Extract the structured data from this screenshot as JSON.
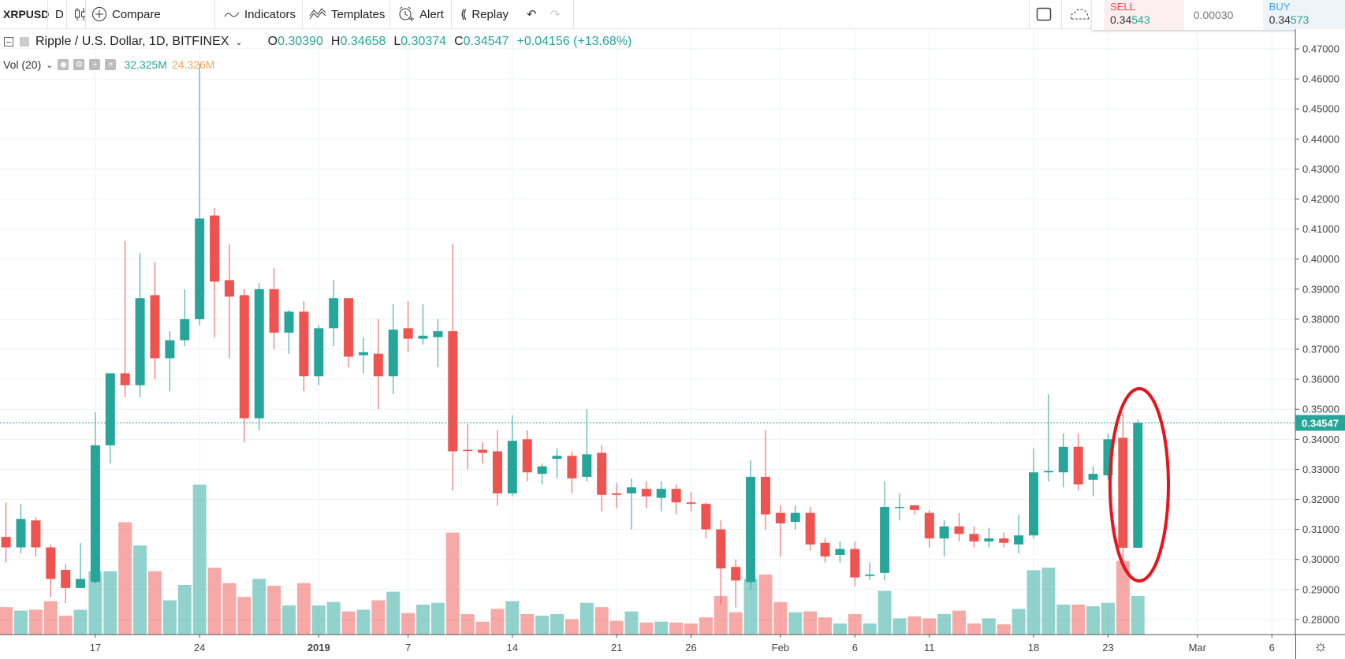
{
  "toolbar": {
    "symbol": "XRPUSD",
    "interval": "D",
    "compare": "Compare",
    "indicators": "Indicators",
    "templates": "Templates",
    "alert": "Alert",
    "replay": "Replay"
  },
  "trade": {
    "sell_label": "SELL",
    "sell_price_a": "0.34",
    "sell_price_b": "543",
    "spread": "0.00030",
    "buy_label": "BUY",
    "buy_price_a": "0.34",
    "buy_price_b": "573"
  },
  "legend": {
    "title": "Ripple / U.S. Dollar, 1D, BITFINEX",
    "o_label": "O",
    "o": "0.30390",
    "h_label": "H",
    "h": "0.34658",
    "l_label": "L",
    "l": "0.30374",
    "c_label": "C",
    "c": "0.34547",
    "change": "+0.04156 (+13.68%)",
    "vol_label": "Vol (20)",
    "vol": "32.325M",
    "vol_ma": "24.326M"
  },
  "colors": {
    "up": "#26a69a",
    "down": "#ef5350",
    "annotation": "#e8141c"
  },
  "chart_data": {
    "type": "candlestick",
    "symbol": "XRPUSD",
    "last_price": "0.34547",
    "last_value": 0.34547,
    "ylim": [
      0.275,
      0.475
    ],
    "y_ticks": [
      "0.28000",
      "0.29000",
      "0.30000",
      "0.31000",
      "0.32000",
      "0.33000",
      "0.34000",
      "0.35000",
      "0.36000",
      "0.37000",
      "0.38000",
      "0.39000",
      "0.40000",
      "0.41000",
      "0.42000",
      "0.43000",
      "0.44000",
      "0.45000",
      "0.46000",
      "0.47000"
    ],
    "x_ticks": [
      {
        "label": "17",
        "index": 6
      },
      {
        "label": "24",
        "index": 13
      },
      {
        "label": "2019",
        "index": 21,
        "bold": true
      },
      {
        "label": "7",
        "index": 27
      },
      {
        "label": "14",
        "index": 34
      },
      {
        "label": "21",
        "index": 41
      },
      {
        "label": "26",
        "index": 46
      },
      {
        "label": "Feb",
        "index": 52
      },
      {
        "label": "6",
        "index": 57
      },
      {
        "label": "11",
        "index": 62
      },
      {
        "label": "18",
        "index": 69
      },
      {
        "label": "23",
        "index": 74
      },
      {
        "label": "Mar",
        "index": 80
      },
      {
        "label": "6",
        "index": 85
      }
    ],
    "x_count": 88,
    "ohlc": [
      [
        0.3075,
        0.319,
        0.299,
        0.304
      ],
      [
        0.304,
        0.3185,
        0.302,
        0.3135
      ],
      [
        0.313,
        0.314,
        0.301,
        0.304
      ],
      [
        0.304,
        0.305,
        0.2875,
        0.2935
      ],
      [
        0.2965,
        0.2985,
        0.2855,
        0.2905
      ],
      [
        0.2905,
        0.3055,
        0.2905,
        0.2935
      ],
      [
        0.2925,
        0.349,
        0.292,
        0.338
      ],
      [
        0.338,
        0.362,
        0.332,
        0.362
      ],
      [
        0.362,
        0.406,
        0.354,
        0.358
      ],
      [
        0.358,
        0.402,
        0.354,
        0.387
      ],
      [
        0.388,
        0.399,
        0.36,
        0.367
      ],
      [
        0.367,
        0.376,
        0.356,
        0.373
      ],
      [
        0.373,
        0.39,
        0.371,
        0.38
      ],
      [
        0.38,
        0.465,
        0.378,
        0.4135
      ],
      [
        0.4145,
        0.417,
        0.374,
        0.3925
      ],
      [
        0.393,
        0.405,
        0.367,
        0.3875
      ],
      [
        0.388,
        0.39,
        0.339,
        0.347
      ],
      [
        0.347,
        0.392,
        0.343,
        0.39
      ],
      [
        0.39,
        0.397,
        0.37,
        0.3755
      ],
      [
        0.3755,
        0.383,
        0.3685,
        0.3825
      ],
      [
        0.3825,
        0.386,
        0.356,
        0.361
      ],
      [
        0.361,
        0.378,
        0.358,
        0.377
      ],
      [
        0.377,
        0.393,
        0.371,
        0.387
      ],
      [
        0.387,
        0.387,
        0.364,
        0.3675
      ],
      [
        0.368,
        0.374,
        0.362,
        0.369
      ],
      [
        0.3685,
        0.38,
        0.35,
        0.361
      ],
      [
        0.361,
        0.385,
        0.355,
        0.3765
      ],
      [
        0.377,
        0.386,
        0.369,
        0.3735
      ],
      [
        0.3735,
        0.385,
        0.3715,
        0.3745
      ],
      [
        0.374,
        0.38,
        0.364,
        0.376
      ],
      [
        0.376,
        0.405,
        0.323,
        0.336
      ],
      [
        0.3365,
        0.345,
        0.33,
        0.3362
      ],
      [
        0.3365,
        0.339,
        0.332,
        0.3355
      ],
      [
        0.336,
        0.343,
        0.318,
        0.322
      ],
      [
        0.322,
        0.348,
        0.321,
        0.3395
      ],
      [
        0.34,
        0.343,
        0.326,
        0.329
      ],
      [
        0.3285,
        0.332,
        0.325,
        0.331
      ],
      [
        0.3335,
        0.337,
        0.327,
        0.3345
      ],
      [
        0.3345,
        0.336,
        0.322,
        0.327
      ],
      [
        0.3275,
        0.35,
        0.326,
        0.335
      ],
      [
        0.3355,
        0.338,
        0.316,
        0.3215
      ],
      [
        0.322,
        0.3255,
        0.317,
        0.3215
      ],
      [
        0.322,
        0.327,
        0.31,
        0.324
      ],
      [
        0.3235,
        0.326,
        0.317,
        0.321
      ],
      [
        0.3205,
        0.326,
        0.316,
        0.3235
      ],
      [
        0.3235,
        0.325,
        0.315,
        0.319
      ],
      [
        0.319,
        0.3225,
        0.316,
        0.3185
      ],
      [
        0.3185,
        0.319,
        0.307,
        0.31
      ],
      [
        0.31,
        0.313,
        0.285,
        0.297
      ],
      [
        0.2975,
        0.3,
        0.284,
        0.293
      ],
      [
        0.2925,
        0.333,
        0.29,
        0.3275
      ],
      [
        0.3275,
        0.343,
        0.31,
        0.315
      ],
      [
        0.3155,
        0.318,
        0.301,
        0.312
      ],
      [
        0.3125,
        0.318,
        0.31,
        0.3155
      ],
      [
        0.3155,
        0.3175,
        0.303,
        0.305
      ],
      [
        0.3055,
        0.307,
        0.299,
        0.301
      ],
      [
        0.3015,
        0.306,
        0.299,
        0.3035
      ],
      [
        0.3035,
        0.306,
        0.291,
        0.294
      ],
      [
        0.2945,
        0.299,
        0.293,
        0.295
      ],
      [
        0.2955,
        0.326,
        0.293,
        0.3175
      ],
      [
        0.3172,
        0.322,
        0.313,
        0.3175
      ],
      [
        0.318,
        0.318,
        0.315,
        0.3165
      ],
      [
        0.3155,
        0.3165,
        0.304,
        0.307
      ],
      [
        0.307,
        0.313,
        0.301,
        0.311
      ],
      [
        0.311,
        0.3155,
        0.306,
        0.3085
      ],
      [
        0.3085,
        0.311,
        0.304,
        0.306
      ],
      [
        0.306,
        0.3105,
        0.304,
        0.307
      ],
      [
        0.307,
        0.309,
        0.304,
        0.3055
      ],
      [
        0.305,
        0.315,
        0.302,
        0.308
      ],
      [
        0.308,
        0.337,
        0.307,
        0.329
      ],
      [
        0.329,
        0.355,
        0.326,
        0.3295
      ],
      [
        0.329,
        0.342,
        0.324,
        0.3375
      ],
      [
        0.3375,
        0.342,
        0.323,
        0.325
      ],
      [
        0.3265,
        0.331,
        0.321,
        0.3285
      ],
      [
        0.328,
        0.342,
        0.3265,
        0.34
      ],
      [
        0.3405,
        0.349,
        0.2995,
        0.3039
      ],
      [
        0.3039,
        0.34658,
        0.30374,
        0.34547
      ]
    ],
    "volume_millions": [
      23.0,
      20.1,
      20.8,
      28.0,
      15.8,
      20.8,
      53.1,
      53.1,
      94.1,
      74.7,
      53.1,
      28.7,
      41.6,
      125.7,
      56.0,
      43.1,
      31.6,
      46.7,
      40.9,
      24.4,
      43.1,
      24.4,
      27.3,
      19.4,
      20.8,
      28.7,
      35.9,
      18.0,
      25.1,
      26.6,
      85.4,
      17.2,
      10.8,
      21.5,
      28.0,
      17.2,
      15.8,
      17.2,
      12.9,
      26.6,
      23.0,
      11.5,
      19.4,
      10.1,
      10.8,
      10.1,
      9.3,
      14.4,
      32.3,
      18.7,
      46.7,
      50.3,
      27.3,
      18.7,
      19.4,
      14.4,
      9.3,
      17.2,
      9.3,
      36.6,
      13.6,
      15.1,
      13.6,
      17.2,
      20.1,
      9.3,
      13.6,
      8.6,
      21.5,
      53.9,
      56.0,
      25.1,
      25.1,
      23.7,
      26.6,
      61.7,
      32.325
    ]
  }
}
